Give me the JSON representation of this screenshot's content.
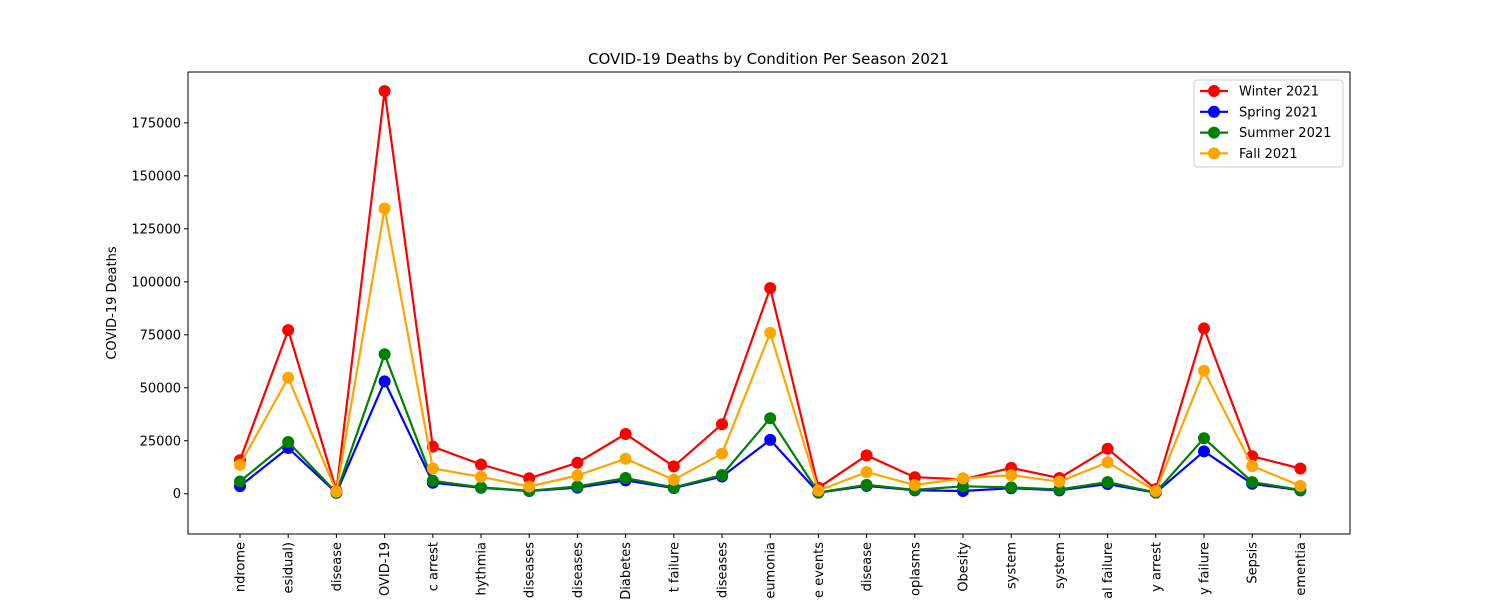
{
  "chart_data": {
    "type": "line",
    "title": "COVID-19 Deaths by Condition Per Season 2021",
    "xlabel": "",
    "ylabel": "COVID-19 Deaths",
    "ylim": [
      -19000,
      199000
    ],
    "yticks": [
      0,
      25000,
      50000,
      75000,
      100000,
      125000,
      150000,
      175000
    ],
    "legend_position": "top-right",
    "grid": false,
    "categories": [
      "ndrome",
      "esidual)",
      "disease",
      "OVID-19",
      "c arrest",
      "hythmia",
      "diseases",
      "diseases",
      "Diabetes",
      "t failure",
      "diseases",
      "eumonia",
      "e events",
      "disease",
      "oplasms",
      "Obesity",
      "system",
      "system",
      "al failure",
      "y arrest",
      "y failure",
      "Sepsis",
      "ementia"
    ],
    "series": [
      {
        "name": "Winter 2021",
        "color": "#ff0000",
        "values": [
          15800,
          77200,
          1500,
          190000,
          22200,
          13800,
          7300,
          14600,
          28200,
          12900,
          32800,
          97000,
          2800,
          18100,
          7800,
          6800,
          12200,
          7400,
          21200,
          2200,
          78000,
          17700,
          11900
        ]
      },
      {
        "name": "Spring 2021",
        "color": "#0000ff",
        "values": [
          3600,
          21600,
          400,
          53000,
          5200,
          2800,
          1300,
          2900,
          6300,
          2700,
          8100,
          25400,
          500,
          3700,
          1600,
          1300,
          2600,
          1600,
          4600,
          500,
          20000,
          4700,
          1600
        ]
      },
      {
        "name": "Summer 2021",
        "color": "#008000",
        "values": [
          5800,
          24400,
          500,
          65800,
          6100,
          3000,
          1400,
          3400,
          7400,
          3000,
          8800,
          35600,
          600,
          4200,
          1800,
          3500,
          3000,
          2000,
          5500,
          600,
          26200,
          5500,
          1800
        ]
      },
      {
        "name": "Fall 2021",
        "color": "#ffa500",
        "values": [
          13700,
          54700,
          1000,
          134600,
          11900,
          8000,
          3400,
          8600,
          16500,
          6600,
          18900,
          75900,
          1500,
          10200,
          4100,
          7300,
          8800,
          5700,
          14800,
          1300,
          58000,
          13100,
          3700
        ]
      }
    ]
  }
}
